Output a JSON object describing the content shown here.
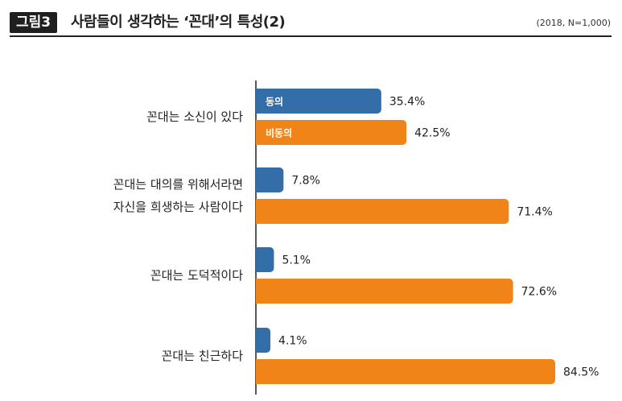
{
  "figure": {
    "badge": "그림3",
    "title": "사람들이 생각하는 ‘꼰대’의 특성(2)",
    "note": "(2018, N=1,000)"
  },
  "colors": {
    "agree": "#336ea8",
    "disagree": "#f08418",
    "axis": "#222222"
  },
  "chart_data": {
    "type": "bar",
    "orientation": "horizontal",
    "title": "사람들이 생각하는 ‘꼰대’의 특성(2)",
    "unit": "%",
    "xlim": [
      0,
      100
    ],
    "categories": [
      [
        "꼰대는 소신이 있다"
      ],
      [
        "꼰대는 대의를 위해서라면",
        "자신을 희생하는 사람이다"
      ],
      [
        "꼰대는 도덕적이다"
      ],
      [
        "꼰대는 친근하다"
      ]
    ],
    "series": [
      {
        "name": "동의",
        "values": [
          35.4,
          7.8,
          5.1,
          4.1
        ]
      },
      {
        "name": "비동의",
        "values": [
          42.5,
          71.4,
          72.6,
          84.5
        ]
      }
    ],
    "value_labels": [
      [
        "35.4%",
        "7.8%",
        "5.1%",
        "4.1%"
      ],
      [
        "42.5%",
        "71.4%",
        "72.6%",
        "84.5%"
      ]
    ]
  }
}
